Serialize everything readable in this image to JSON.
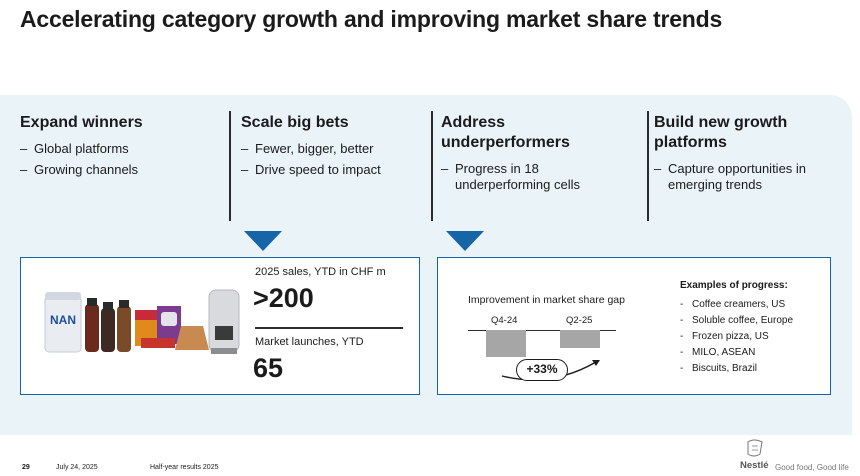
{
  "title": "Accelerating category growth and improving market share trends",
  "columns": [
    {
      "heading": "Expand winners",
      "bullets": [
        "Global platforms",
        "Growing channels"
      ]
    },
    {
      "heading": "Scale big bets",
      "bullets": [
        "Fewer, bigger, better",
        "Drive speed to impact"
      ]
    },
    {
      "heading": "Address underperformers",
      "bullets": [
        "Progress in 18 underperforming cells"
      ]
    },
    {
      "heading": "Build new growth platforms",
      "bullets": [
        "Capture opportunities in emerging trends"
      ]
    }
  ],
  "big_bets": {
    "sales_label": "2025 sales, YTD in CHF m",
    "sales_value": ">200",
    "launches_label": "Market launches, YTD",
    "launches_value": "65",
    "product_label": "NAN"
  },
  "underperformers": {
    "chart_title": "Improvement in market share gap",
    "change_label": "+33%",
    "examples_title": "Examples of progress:",
    "examples": [
      "Coffee creamers, US",
      "Soluble coffee, Europe",
      "Frozen pizza, US",
      "MILO, ASEAN",
      "Biscuits, Brazil"
    ]
  },
  "chart_data": {
    "type": "bar",
    "title": "Improvement in market share gap",
    "categories": [
      "Q4-24",
      "Q2-25"
    ],
    "values": [
      -1.0,
      -0.67
    ],
    "annotation": "+33%",
    "colors": [
      "#a6a6a6"
    ]
  },
  "footer": {
    "page": "29",
    "date": "July 24, 2025",
    "doc": "Half-year results 2025",
    "brand": "Nestlé",
    "tagline": "Good food, Good life"
  },
  "colors": {
    "accent": "#1565a8",
    "panel": "#e9f3f8",
    "bar": "#a6a6a6"
  }
}
